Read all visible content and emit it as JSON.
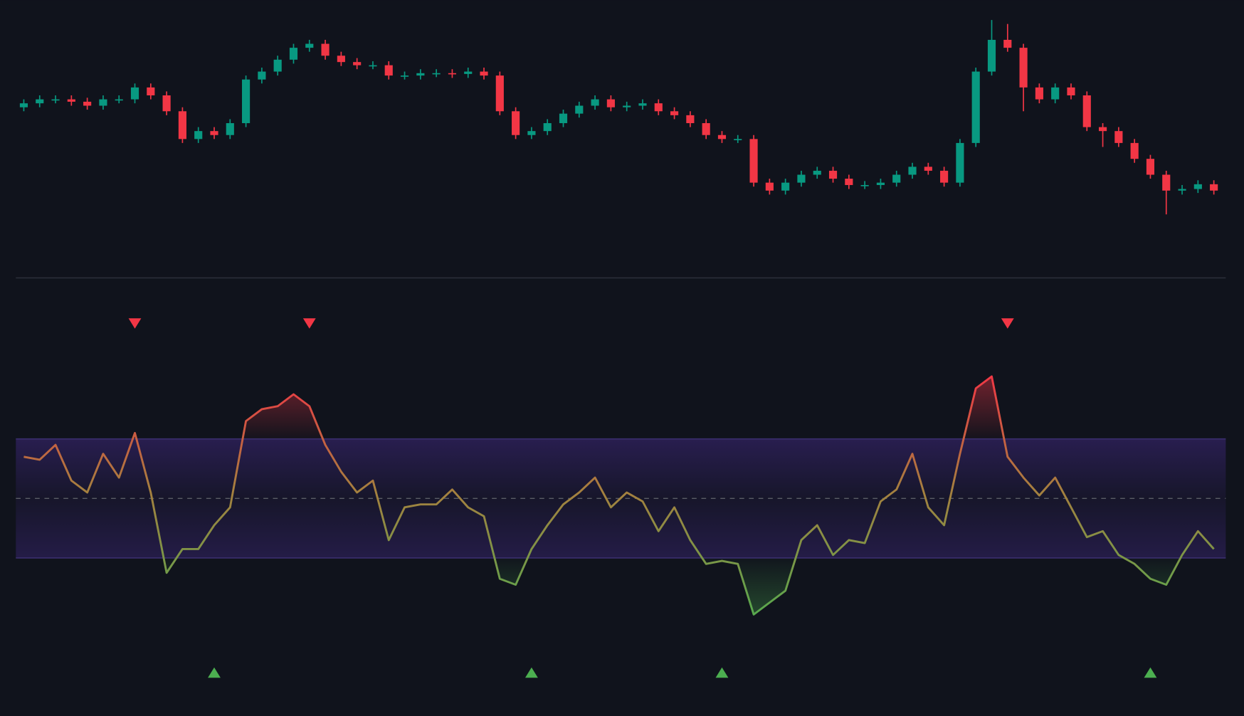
{
  "chart_data": [
    {
      "type": "candlestick",
      "open": [
        165,
        170,
        175,
        175,
        172,
        167,
        175,
        175,
        190,
        180,
        160,
        125,
        135,
        130,
        145,
        200,
        210,
        225,
        240,
        245,
        230,
        222,
        218,
        218,
        205,
        205,
        208,
        208,
        207,
        210,
        205,
        160,
        130,
        135,
        145,
        157,
        167,
        175,
        165,
        167,
        170,
        160,
        155,
        145,
        130,
        125,
        125,
        70,
        60,
        70,
        80,
        85,
        75,
        67,
        67,
        70,
        80,
        90,
        85,
        70,
        120,
        210,
        250,
        240,
        190,
        175,
        190,
        180,
        140,
        135,
        120,
        100,
        80,
        60,
        62,
        68
      ],
      "high": [
        175,
        180,
        180,
        180,
        177,
        180,
        180,
        195,
        195,
        185,
        165,
        140,
        140,
        150,
        205,
        215,
        230,
        245,
        250,
        250,
        235,
        227,
        223,
        223,
        210,
        213,
        213,
        213,
        215,
        215,
        210,
        165,
        140,
        150,
        162,
        172,
        180,
        180,
        172,
        175,
        175,
        165,
        160,
        150,
        135,
        130,
        130,
        75,
        75,
        85,
        90,
        90,
        80,
        72,
        75,
        85,
        95,
        95,
        90,
        125,
        215,
        275,
        270,
        245,
        195,
        195,
        195,
        185,
        145,
        140,
        125,
        105,
        85,
        67,
        73,
        73
      ],
      "low": [
        160,
        165,
        170,
        167,
        162,
        162,
        170,
        170,
        175,
        155,
        120,
        120,
        125,
        125,
        140,
        195,
        205,
        220,
        235,
        225,
        217,
        213,
        213,
        200,
        200,
        200,
        203,
        202,
        202,
        200,
        155,
        125,
        125,
        130,
        140,
        152,
        162,
        160,
        160,
        162,
        155,
        150,
        140,
        125,
        120,
        120,
        65,
        55,
        55,
        65,
        75,
        70,
        62,
        62,
        62,
        65,
        75,
        80,
        65,
        65,
        115,
        205,
        235,
        160,
        170,
        170,
        175,
        135,
        115,
        115,
        95,
        75,
        30,
        55,
        57,
        55
      ],
      "close": [
        170,
        175,
        175,
        172,
        167,
        175,
        175,
        190,
        180,
        160,
        125,
        135,
        130,
        145,
        200,
        210,
        225,
        240,
        245,
        230,
        222,
        218,
        218,
        205,
        205,
        208,
        208,
        207,
        210,
        205,
        160,
        130,
        135,
        145,
        157,
        167,
        175,
        165,
        167,
        170,
        160,
        155,
        145,
        130,
        125,
        125,
        70,
        60,
        70,
        80,
        85,
        75,
        67,
        67,
        70,
        80,
        90,
        85,
        70,
        120,
        210,
        250,
        240,
        190,
        175,
        190,
        180,
        140,
        135,
        120,
        100,
        80,
        60,
        62,
        68,
        60
      ],
      "ylim": [
        20,
        280
      ],
      "up_color": "#089981",
      "down_color": "#f23645"
    },
    {
      "type": "oscillator",
      "values": [
        64,
        63,
        68,
        56,
        52,
        65,
        57,
        72,
        52,
        25,
        33,
        33,
        41,
        47,
        76,
        80,
        81,
        85,
        81,
        68,
        59,
        52,
        56,
        36,
        47,
        48,
        48,
        53,
        47,
        44,
        23,
        21,
        33,
        41,
        48,
        52,
        57,
        47,
        52,
        49,
        39,
        47,
        36,
        28,
        29,
        28,
        11,
        15,
        19,
        36,
        41,
        31,
        36,
        35,
        49,
        53,
        65,
        47,
        41,
        65,
        87,
        91,
        64,
        57,
        51,
        57,
        47,
        37,
        39,
        31,
        28,
        23,
        21,
        31,
        39,
        33
      ],
      "ylim": [
        0,
        100
      ],
      "band": [
        30,
        70
      ],
      "midline": 50,
      "high_color": "#f23645",
      "mid_color": "#a5803f",
      "low_color": "#4caf50",
      "band_color": "#2b1f55",
      "sell_signals": [
        7,
        18,
        62
      ],
      "buy_signals": [
        12,
        32,
        44,
        71
      ],
      "sell_color": "#f23645",
      "buy_color": "#4caf50"
    }
  ]
}
